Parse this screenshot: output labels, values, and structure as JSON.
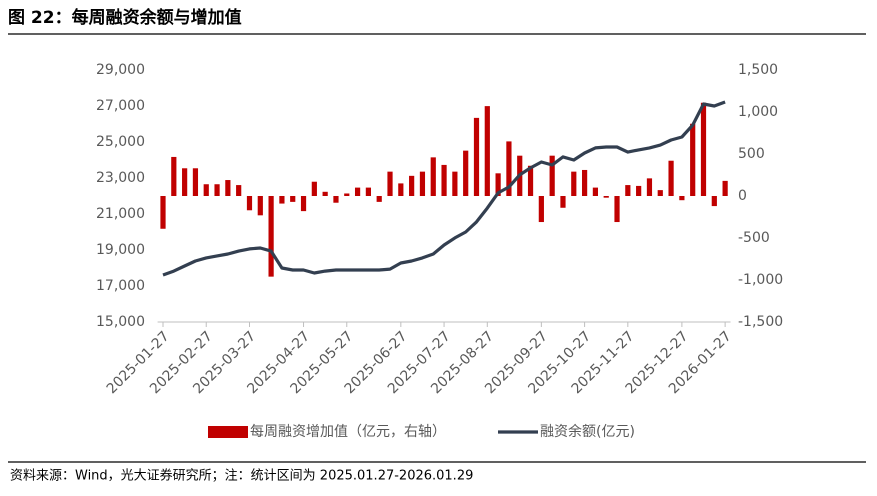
{
  "chart_data": {
    "type": "bar_line",
    "title": "图 22：每周融资余额与增加值",
    "source": "资料来源：Wind，光大证券研究所；注：统计区间为 2025.01.27-2026.01.29",
    "categories": [
      "2025-01-27",
      null,
      null,
      null,
      "2025-02-27",
      null,
      null,
      null,
      "2025-03-27",
      null,
      null,
      null,
      null,
      "2025-04-27",
      null,
      null,
      null,
      "2025-05-27",
      null,
      null,
      null,
      null,
      "2025-06-27",
      null,
      null,
      null,
      "2025-07-27",
      null,
      null,
      null,
      "2025-08-27",
      null,
      null,
      null,
      null,
      "2025-09-27",
      null,
      null,
      null,
      "2025-10-27",
      null,
      null,
      null,
      "2025-11-27",
      null,
      null,
      null,
      null,
      "2025-12-27",
      null,
      null,
      null,
      "2026-01-27"
    ],
    "series": [
      {
        "name": "每周融资增加值（亿元，右轴）",
        "color": "#c00000",
        "axis": "y2",
        "values": [
          -390,
          465,
          330,
          330,
          140,
          140,
          190,
          130,
          -170,
          -230,
          -960,
          -90,
          -70,
          -180,
          170,
          50,
          -80,
          30,
          100,
          100,
          -70,
          290,
          150,
          240,
          290,
          460,
          370,
          290,
          540,
          930,
          1070,
          270,
          650,
          480,
          360,
          -310,
          480,
          -140,
          290,
          310,
          100,
          -20,
          -310,
          130,
          120,
          210,
          70,
          420,
          -50,
          860,
          1110,
          -120,
          180
        ]
      },
      {
        "name": "融资余额(亿元)",
        "color": "#333f50",
        "axis": "y",
        "values": [
          17610,
          17830,
          18110,
          18390,
          18560,
          18670,
          18780,
          18940,
          19060,
          19110,
          18940,
          18000,
          17890,
          17890,
          17720,
          17830,
          17890,
          17890,
          17890,
          17890,
          17890,
          17940,
          18280,
          18390,
          18560,
          18780,
          19280,
          19670,
          20000,
          20560,
          21330,
          22170,
          22500,
          23170,
          23560,
          23890,
          23720,
          24170,
          24000,
          24390,
          24670,
          24720,
          24720,
          24440,
          24560,
          24670,
          24830,
          25110,
          25280,
          25940,
          27110,
          27000,
          27220
        ]
      }
    ],
    "ylim": [
      15000,
      29000
    ],
    "yticks": [
      {
        "value": 15000,
        "label": "15,000"
      },
      {
        "value": 17000,
        "label": "17,000"
      },
      {
        "value": 19000,
        "label": "19,000"
      },
      {
        "value": 21000,
        "label": "21,000"
      },
      {
        "value": 23000,
        "label": "23,000"
      },
      {
        "value": 25000,
        "label": "25,000"
      },
      {
        "value": 27000,
        "label": "27,000"
      },
      {
        "value": 29000,
        "label": "29,000"
      }
    ],
    "y2lim": [
      -1500,
      1500
    ],
    "y2ticks": [
      {
        "value": -1500,
        "label": "-1,500"
      },
      {
        "value": -1000,
        "label": "-1,000"
      },
      -500,
      0,
      500,
      {
        "value": 1000,
        "label": "1,000"
      },
      {
        "value": 1500,
        "label": "1,500"
      }
    ],
    "grid": false,
    "legend": "bottom"
  }
}
